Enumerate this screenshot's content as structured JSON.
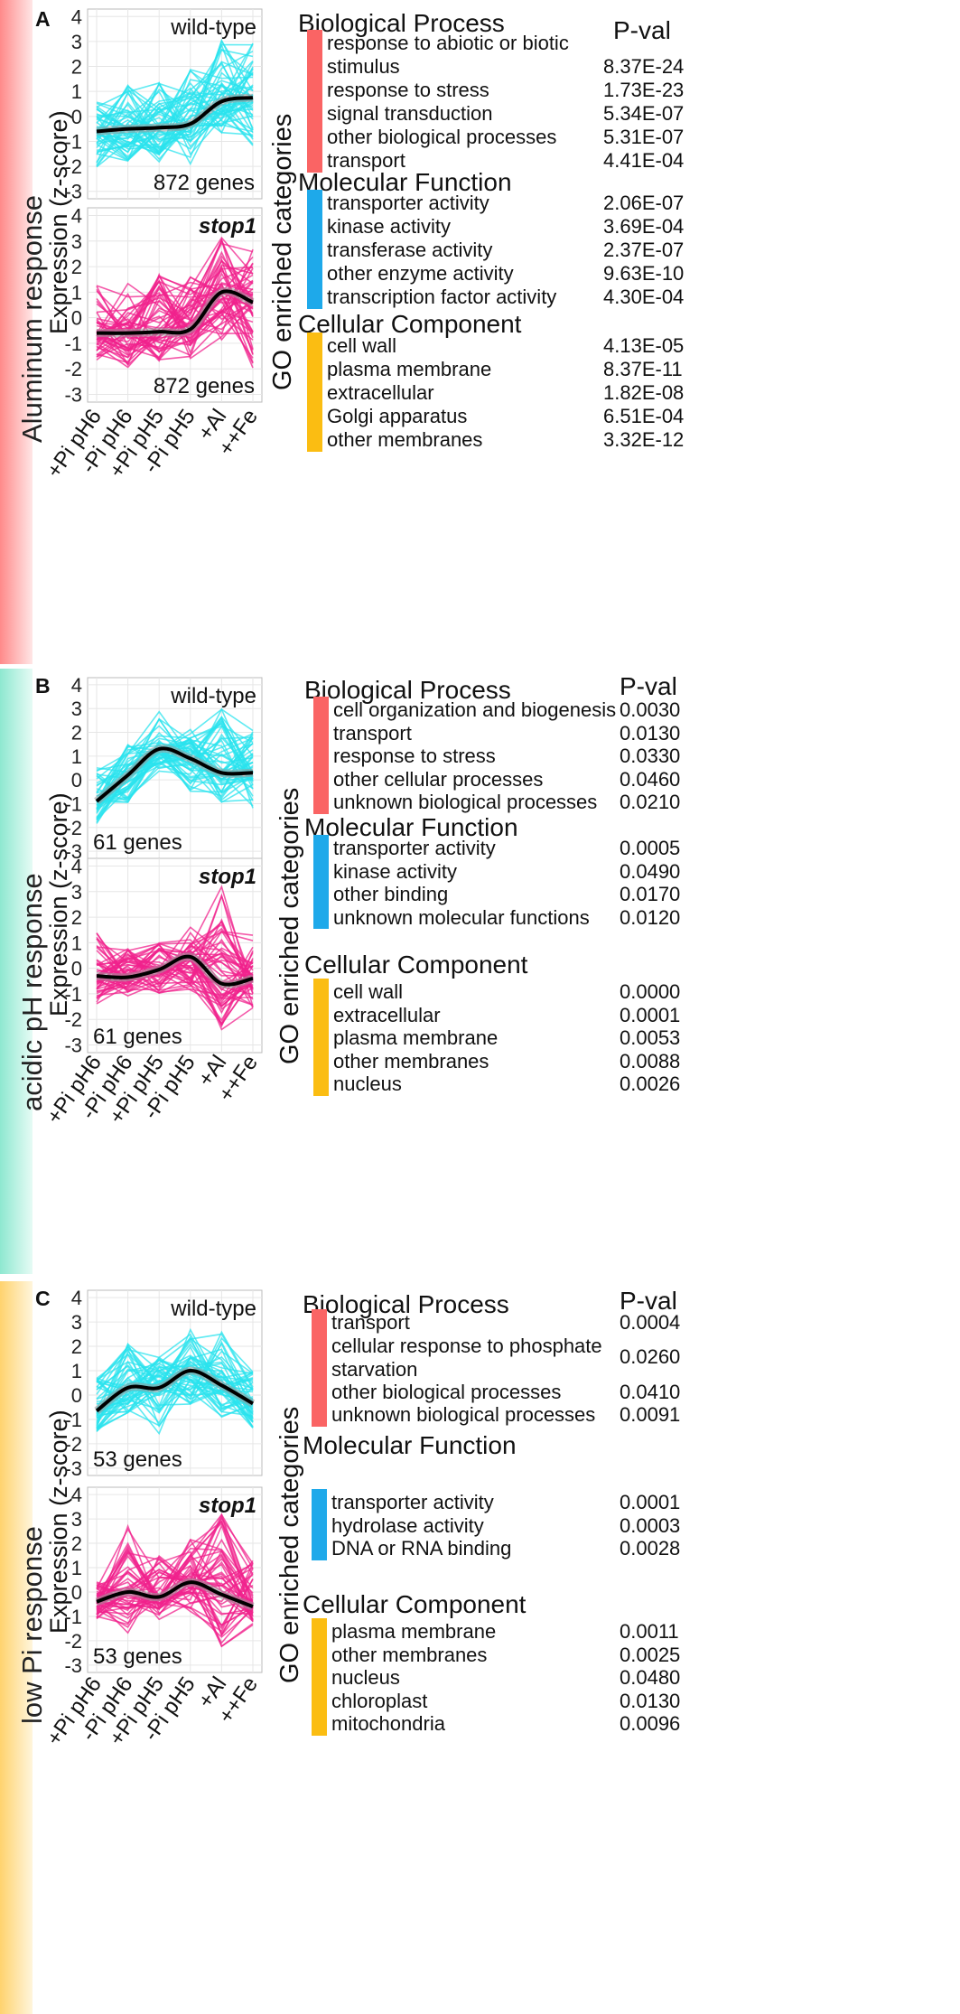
{
  "colors": {
    "wildtype_lines": "#29e3ee",
    "stop1_lines": "#f0228c",
    "mean_line": "#000000",
    "bp_bar": "#fa6464",
    "mf_bar": "#1ea9ea",
    "cc_bar": "#fbbd12",
    "panelA_side": "#ff8a8a",
    "panelB_side": "#8ee8d0",
    "panelC_side": "#ffd36e"
  },
  "x_conditions": [
    "+Pi pH6",
    "-Pi pH6",
    "+Pi pH5",
    "-Pi pH5",
    "+Al",
    "++Fe"
  ],
  "y_ticks": [
    4,
    3,
    2,
    1,
    0,
    -1,
    -2,
    -3
  ],
  "y_axis_label": "Expression (z-score)",
  "go_axis_label": "GO enriched categories",
  "pval_header": "P-val",
  "chart_data": [
    {
      "type": "line",
      "panel": "A",
      "side_label": "Aluminum response",
      "xlabels": [
        "+Pi pH6",
        "-Pi pH6",
        "+Pi pH5",
        "-Pi pH5",
        "+Al",
        "++Fe"
      ],
      "ylim": [
        -3.3,
        4.3
      ],
      "ylabel": "Expression (z-score)",
      "subplots": [
        {
          "genotype": "wild-type",
          "italic": false,
          "genes_label": "872 genes",
          "color": "#29e3ee",
          "mean": [
            -0.6,
            -0.5,
            -0.45,
            -0.3,
            0.6,
            0.75
          ],
          "band_upper": [
            0.8,
            1.6,
            1.6,
            1.9,
            3.4,
            3.1
          ],
          "band_lower": [
            -2.4,
            -1.8,
            -1.9,
            -2.0,
            -0.7,
            -1.3
          ]
        },
        {
          "genotype": "stop1",
          "italic": true,
          "genes_label": "872 genes",
          "color": "#f0228c",
          "mean": [
            -0.6,
            -0.6,
            -0.55,
            -0.45,
            1.0,
            0.6
          ],
          "band_upper": [
            1.3,
            1.6,
            1.7,
            1.9,
            3.3,
            2.8
          ],
          "band_lower": [
            -1.7,
            -2.0,
            -1.8,
            -1.6,
            -0.9,
            -2.0
          ]
        }
      ],
      "go": {
        "categories": [
          {
            "name": "Biological Process",
            "bar": "bp",
            "terms": [
              {
                "term": [
                  "response to abiotic or biotic",
                  "stimulus"
                ],
                "p": "8.37E-24"
              },
              {
                "term": [
                  "response to stress"
                ],
                "p": "1.73E-23"
              },
              {
                "term": [
                  "signal transduction"
                ],
                "p": "5.34E-07"
              },
              {
                "term": [
                  "other biological processes"
                ],
                "p": "5.31E-07"
              },
              {
                "term": [
                  "transport"
                ],
                "p": "4.41E-04"
              }
            ]
          },
          {
            "name": "Molecular Function",
            "bar": "mf",
            "terms": [
              {
                "term": [
                  "transporter activity"
                ],
                "p": "2.06E-07"
              },
              {
                "term": [
                  "kinase activity"
                ],
                "p": "3.69E-04"
              },
              {
                "term": [
                  "transferase activity"
                ],
                "p": "2.37E-07"
              },
              {
                "term": [
                  "other enzyme activity"
                ],
                "p": "9.63E-10"
              },
              {
                "term": [
                  "transcription factor activity"
                ],
                "p": "4.30E-04"
              }
            ]
          },
          {
            "name": "Cellular Component",
            "bar": "cc",
            "terms": [
              {
                "term": [
                  "cell wall"
                ],
                "p": "4.13E-05"
              },
              {
                "term": [
                  "plasma membrane"
                ],
                "p": "8.37E-11"
              },
              {
                "term": [
                  "extracellular"
                ],
                "p": "1.82E-08"
              },
              {
                "term": [
                  "Golgi apparatus"
                ],
                "p": "6.51E-04"
              },
              {
                "term": [
                  "other membranes"
                ],
                "p": "3.32E-12"
              }
            ]
          }
        ]
      }
    },
    {
      "type": "line",
      "panel": "B",
      "side_label": "acidic pH response",
      "xlabels": [
        "+Pi pH6",
        "-Pi pH6",
        "+Pi pH5",
        "-Pi pH5",
        "+Al",
        "++Fe"
      ],
      "ylim": [
        -3.3,
        4.3
      ],
      "ylabel": "Expression (z-score)",
      "subplots": [
        {
          "genotype": "wild-type",
          "italic": false,
          "genes_label": "61 genes",
          "color": "#29e3ee",
          "mean": [
            -0.9,
            0.2,
            1.3,
            0.9,
            0.3,
            0.3
          ],
          "band_upper": [
            0.6,
            1.5,
            3.2,
            2.2,
            3.2,
            2.1
          ],
          "band_lower": [
            -1.9,
            -1.0,
            0.2,
            -0.5,
            -1.4,
            -1.2
          ]
        },
        {
          "genotype": "stop1",
          "italic": true,
          "genes_label": "61 genes",
          "color": "#f0228c",
          "mean": [
            -0.3,
            -0.35,
            -0.05,
            0.45,
            -0.6,
            -0.4
          ],
          "band_upper": [
            1.4,
            0.8,
            1.1,
            1.7,
            3.2,
            1.5
          ],
          "band_lower": [
            -1.4,
            -1.1,
            -1.0,
            -0.9,
            -2.4,
            -1.6
          ]
        }
      ],
      "go": {
        "categories": [
          {
            "name": "Biological Process",
            "bar": "bp",
            "terms": [
              {
                "term": [
                  "cell organization and biogenesis"
                ],
                "p": "0.0030"
              },
              {
                "term": [
                  "transport"
                ],
                "p": "0.0130"
              },
              {
                "term": [
                  "response to stress"
                ],
                "p": "0.0330"
              },
              {
                "term": [
                  "other cellular processes"
                ],
                "p": "0.0460"
              },
              {
                "term": [
                  "unknown biological processes"
                ],
                "p": "0.0210"
              }
            ]
          },
          {
            "name": "Molecular Function",
            "bar": "mf",
            "terms": [
              {
                "term": [
                  "transporter activity"
                ],
                "p": "0.0005"
              },
              {
                "term": [
                  "kinase activity"
                ],
                "p": "0.0490"
              },
              {
                "term": [
                  "other binding"
                ],
                "p": "0.0170"
              },
              {
                "term": [
                  "unknown molecular functions"
                ],
                "p": "0.0120"
              }
            ]
          },
          {
            "name": "Cellular Component",
            "bar": "cc",
            "terms": [
              {
                "term": [
                  "cell wall"
                ],
                "p": "0.0000"
              },
              {
                "term": [
                  "extracellular"
                ],
                "p": "0.0001"
              },
              {
                "term": [
                  "plasma membrane"
                ],
                "p": "0.0053"
              },
              {
                "term": [
                  "other membranes"
                ],
                "p": "0.0088"
              },
              {
                "term": [
                  "nucleus"
                ],
                "p": "0.0026"
              }
            ]
          }
        ]
      }
    },
    {
      "type": "line",
      "panel": "C",
      "side_label": "low Pi response",
      "xlabels": [
        "+Pi pH6",
        "-Pi pH6",
        "+Pi pH5",
        "-Pi pH5",
        "+Al",
        "++Fe"
      ],
      "ylim": [
        -3.3,
        4.3
      ],
      "ylabel": "Expression (z-score)",
      "subplots": [
        {
          "genotype": "wild-type",
          "italic": false,
          "genes_label": "53 genes",
          "color": "#29e3ee",
          "mean": [
            -0.65,
            0.3,
            0.3,
            1.0,
            0.4,
            -0.35
          ],
          "band_upper": [
            0.7,
            2.3,
            1.6,
            3.0,
            2.6,
            1.1
          ],
          "band_lower": [
            -1.6,
            -0.8,
            -1.6,
            -0.5,
            -1.0,
            -1.4
          ]
        },
        {
          "genotype": "stop1",
          "italic": true,
          "genes_label": "53 genes",
          "color": "#f0228c",
          "mean": [
            -0.4,
            0.0,
            -0.2,
            0.4,
            -0.1,
            -0.6
          ],
          "band_upper": [
            0.5,
            3.1,
            1.6,
            2.2,
            3.2,
            1.3
          ],
          "band_lower": [
            -1.2,
            -1.7,
            -1.2,
            -0.8,
            -2.3,
            -1.5
          ]
        }
      ],
      "go": {
        "categories": [
          {
            "name": "Biological Process",
            "bar": "bp",
            "terms": [
              {
                "term": [
                  "transport"
                ],
                "p": "0.0004"
              },
              {
                "term": [
                  "cellular response to phosphate",
                  "starvation"
                ],
                "p": "0.0260"
              },
              {
                "term": [
                  "other biological processes"
                ],
                "p": "0.0410"
              },
              {
                "term": [
                  "unknown biological processes"
                ],
                "p": "0.0091"
              }
            ]
          },
          {
            "name": "Molecular Function",
            "bar": "mf",
            "terms": [
              {
                "term": [
                  "transporter activity"
                ],
                "p": "0.0001"
              },
              {
                "term": [
                  "hydrolase activity"
                ],
                "p": "0.0003"
              },
              {
                "term": [
                  "DNA or RNA binding"
                ],
                "p": "0.0028"
              }
            ]
          },
          {
            "name": "Cellular Component",
            "bar": "cc",
            "terms": [
              {
                "term": [
                  "plasma membrane"
                ],
                "p": "0.0011"
              },
              {
                "term": [
                  "other membranes"
                ],
                "p": "0.0025"
              },
              {
                "term": [
                  "nucleus"
                ],
                "p": "0.0480"
              },
              {
                "term": [
                  "chloroplast"
                ],
                "p": "0.0130"
              },
              {
                "term": [
                  "mitochondria"
                ],
                "p": "0.0096"
              }
            ]
          }
        ]
      }
    }
  ]
}
